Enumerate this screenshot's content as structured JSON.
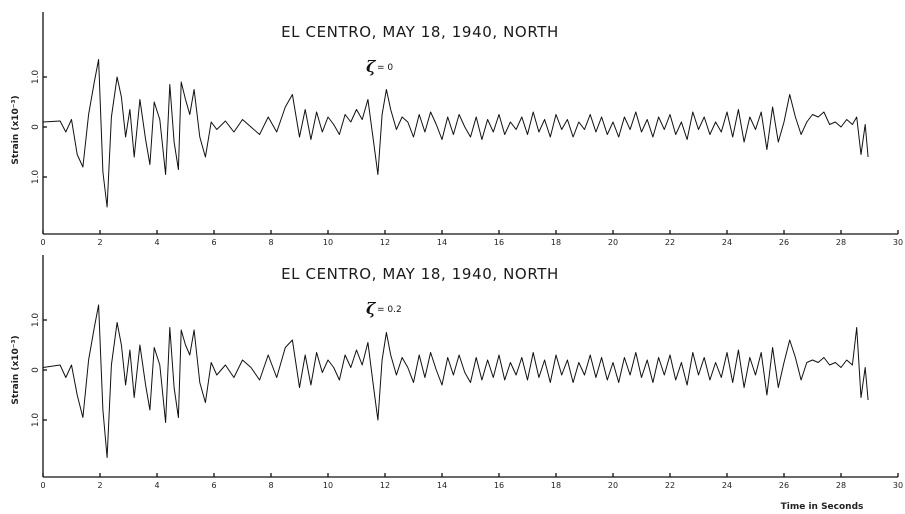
{
  "chart_data": [
    {
      "type": "line",
      "title": "EL CENTRO,  MAY 18, 1940, NORTH",
      "annotation": {
        "symbol": "ζ",
        "value": "= 0"
      },
      "ylabel": "Strain (x10⁻³)",
      "xlabel": "",
      "xlim": [
        0,
        30
      ],
      "ylim": [
        -2.1,
        2.3
      ],
      "x_ticks": [
        "0",
        "2",
        "4",
        "6",
        "8",
        "10",
        "12",
        "14",
        "16",
        "18",
        "20",
        "22",
        "24",
        "26",
        "28",
        "30"
      ],
      "y_ticks": [
        {
          "value": 1.0,
          "label": "1.0"
        },
        {
          "value": 0,
          "label": "0"
        },
        {
          "value": -1.0,
          "label": "1.0"
        }
      ],
      "grid": false,
      "series": [
        {
          "x": [
            0,
            0.6,
            0.8,
            1.0,
            1.2,
            1.4,
            1.6,
            1.8,
            1.95,
            2.1,
            2.25,
            2.4,
            2.6,
            2.75,
            2.9,
            3.05,
            3.2,
            3.4,
            3.6,
            3.75,
            3.9,
            4.1,
            4.3,
            4.45,
            4.6,
            4.75,
            4.85,
            5.0,
            5.15,
            5.3,
            5.5,
            5.7,
            5.9,
            6.1,
            6.4,
            6.7,
            7.0,
            7.3,
            7.6,
            7.9,
            8.2,
            8.5,
            8.75,
            9.0,
            9.2,
            9.4,
            9.6,
            9.8,
            10.0,
            10.2,
            10.4,
            10.6,
            10.8,
            11.0,
            11.2,
            11.4,
            11.6,
            11.75,
            11.9,
            12.05,
            12.2,
            12.4,
            12.6,
            12.8,
            13.0,
            13.2,
            13.4,
            13.6,
            13.8,
            14.0,
            14.2,
            14.4,
            14.6,
            14.8,
            15.0,
            15.2,
            15.4,
            15.6,
            15.8,
            16.0,
            16.2,
            16.4,
            16.6,
            16.8,
            17.0,
            17.2,
            17.4,
            17.6,
            17.8,
            18.0,
            18.2,
            18.4,
            18.6,
            18.8,
            19.0,
            19.2,
            19.4,
            19.6,
            19.8,
            20.0,
            20.2,
            20.4,
            20.6,
            20.8,
            21.0,
            21.2,
            21.4,
            21.6,
            21.8,
            22.0,
            22.2,
            22.4,
            22.6,
            22.8,
            23.0,
            23.2,
            23.4,
            23.6,
            23.8,
            24.0,
            24.2,
            24.4,
            24.6,
            24.8,
            25.0,
            25.2,
            25.4,
            25.6,
            25.8,
            26.0,
            26.2,
            26.4,
            26.6,
            26.8,
            27.0,
            27.2,
            27.4,
            27.6,
            27.8,
            28.0,
            28.2,
            28.4,
            28.55,
            28.7,
            28.85,
            28.95
          ],
          "y": [
            0.1,
            0.12,
            -0.1,
            0.15,
            -0.55,
            -0.8,
            0.25,
            0.9,
            1.35,
            -0.9,
            -1.6,
            0.2,
            1.0,
            0.6,
            -0.2,
            0.35,
            -0.6,
            0.55,
            -0.25,
            -0.75,
            0.5,
            0.15,
            -0.95,
            0.85,
            -0.3,
            -0.85,
            0.9,
            0.55,
            0.25,
            0.75,
            -0.2,
            -0.6,
            0.1,
            -0.05,
            0.12,
            -0.1,
            0.15,
            0.0,
            -0.15,
            0.2,
            -0.1,
            0.4,
            0.65,
            -0.2,
            0.35,
            -0.25,
            0.3,
            -0.1,
            0.2,
            0.05,
            -0.15,
            0.25,
            0.1,
            0.35,
            0.15,
            0.55,
            -0.3,
            -0.95,
            0.25,
            0.75,
            0.35,
            -0.05,
            0.2,
            0.1,
            -0.2,
            0.25,
            -0.1,
            0.3,
            0.05,
            -0.25,
            0.2,
            -0.15,
            0.25,
            0.0,
            -0.2,
            0.2,
            -0.25,
            0.15,
            -0.1,
            0.25,
            -0.15,
            0.1,
            -0.05,
            0.2,
            -0.15,
            0.3,
            -0.1,
            0.15,
            -0.2,
            0.25,
            -0.05,
            0.15,
            -0.2,
            0.1,
            -0.05,
            0.25,
            -0.1,
            0.2,
            -0.15,
            0.1,
            -0.2,
            0.2,
            -0.05,
            0.3,
            -0.1,
            0.15,
            -0.2,
            0.2,
            -0.05,
            0.25,
            -0.15,
            0.1,
            -0.25,
            0.3,
            -0.05,
            0.2,
            -0.15,
            0.1,
            -0.1,
            0.3,
            -0.2,
            0.35,
            -0.3,
            0.2,
            -0.05,
            0.3,
            -0.45,
            0.4,
            -0.3,
            0.1,
            0.65,
            0.2,
            -0.15,
            0.1,
            0.25,
            0.2,
            0.3,
            0.05,
            0.1,
            0.0,
            0.15,
            0.05,
            0.2,
            -0.55,
            0.05,
            -0.6
          ]
        }
      ]
    },
    {
      "type": "line",
      "title": "EL CENTRO,  MAY 18, 1940, NORTH",
      "annotation": {
        "symbol": "ζ",
        "value": "= 0.2"
      },
      "ylabel": "Strain (x10⁻³)",
      "xlabel": "Time in Seconds",
      "xlim": [
        0,
        30
      ],
      "ylim": [
        -2.1,
        2.3
      ],
      "x_ticks": [
        "0",
        "2",
        "4",
        "6",
        "8",
        "10",
        "12",
        "14",
        "16",
        "18",
        "20",
        "22",
        "24",
        "26",
        "28",
        "30"
      ],
      "y_ticks": [
        {
          "value": 1.0,
          "label": "1.0"
        },
        {
          "value": 0,
          "label": "0"
        },
        {
          "value": -1.0,
          "label": "1.0"
        }
      ],
      "grid": false,
      "series": [
        {
          "x": [
            0,
            0.6,
            0.8,
            1.0,
            1.2,
            1.4,
            1.6,
            1.8,
            1.95,
            2.1,
            2.25,
            2.4,
            2.6,
            2.75,
            2.9,
            3.05,
            3.2,
            3.4,
            3.6,
            3.75,
            3.9,
            4.1,
            4.3,
            4.45,
            4.6,
            4.75,
            4.85,
            5.0,
            5.15,
            5.3,
            5.5,
            5.7,
            5.9,
            6.1,
            6.4,
            6.7,
            7.0,
            7.3,
            7.6,
            7.9,
            8.2,
            8.5,
            8.75,
            9.0,
            9.2,
            9.4,
            9.6,
            9.8,
            10.0,
            10.2,
            10.4,
            10.6,
            10.8,
            11.0,
            11.2,
            11.4,
            11.6,
            11.75,
            11.9,
            12.05,
            12.2,
            12.4,
            12.6,
            12.8,
            13.0,
            13.2,
            13.4,
            13.6,
            13.8,
            14.0,
            14.2,
            14.4,
            14.6,
            14.8,
            15.0,
            15.2,
            15.4,
            15.6,
            15.8,
            16.0,
            16.2,
            16.4,
            16.6,
            16.8,
            17.0,
            17.2,
            17.4,
            17.6,
            17.8,
            18.0,
            18.2,
            18.4,
            18.6,
            18.8,
            19.0,
            19.2,
            19.4,
            19.6,
            19.8,
            20.0,
            20.2,
            20.4,
            20.6,
            20.8,
            21.0,
            21.2,
            21.4,
            21.6,
            21.8,
            22.0,
            22.2,
            22.4,
            22.6,
            22.8,
            23.0,
            23.2,
            23.4,
            23.6,
            23.8,
            24.0,
            24.2,
            24.4,
            24.6,
            24.8,
            25.0,
            25.2,
            25.4,
            25.6,
            25.8,
            26.0,
            26.2,
            26.4,
            26.6,
            26.8,
            27.0,
            27.2,
            27.4,
            27.6,
            27.8,
            28.0,
            28.2,
            28.4,
            28.55,
            28.7,
            28.85,
            28.95
          ],
          "y": [
            0.05,
            0.1,
            -0.15,
            0.1,
            -0.5,
            -0.95,
            0.2,
            0.85,
            1.3,
            -0.8,
            -1.75,
            0.1,
            0.95,
            0.5,
            -0.3,
            0.4,
            -0.55,
            0.5,
            -0.3,
            -0.8,
            0.45,
            0.1,
            -1.05,
            0.85,
            -0.35,
            -0.95,
            0.8,
            0.5,
            0.3,
            0.8,
            -0.25,
            -0.65,
            0.15,
            -0.1,
            0.1,
            -0.15,
            0.2,
            0.05,
            -0.2,
            0.3,
            -0.15,
            0.45,
            0.6,
            -0.35,
            0.3,
            -0.3,
            0.35,
            -0.05,
            0.2,
            0.05,
            -0.2,
            0.3,
            0.05,
            0.4,
            0.1,
            0.55,
            -0.35,
            -1.0,
            0.2,
            0.75,
            0.3,
            -0.1,
            0.25,
            0.05,
            -0.25,
            0.3,
            -0.15,
            0.35,
            0.0,
            -0.3,
            0.25,
            -0.1,
            0.3,
            -0.05,
            -0.25,
            0.25,
            -0.2,
            0.2,
            -0.15,
            0.3,
            -0.2,
            0.15,
            -0.1,
            0.25,
            -0.2,
            0.35,
            -0.15,
            0.2,
            -0.25,
            0.3,
            -0.1,
            0.2,
            -0.25,
            0.15,
            -0.1,
            0.3,
            -0.15,
            0.25,
            -0.2,
            0.15,
            -0.25,
            0.25,
            -0.1,
            0.35,
            -0.15,
            0.2,
            -0.25,
            0.25,
            -0.1,
            0.3,
            -0.2,
            0.15,
            -0.3,
            0.35,
            -0.1,
            0.25,
            -0.2,
            0.15,
            -0.15,
            0.35,
            -0.25,
            0.4,
            -0.35,
            0.25,
            -0.1,
            0.35,
            -0.5,
            0.45,
            -0.35,
            0.15,
            0.6,
            0.25,
            -0.2,
            0.15,
            0.2,
            0.15,
            0.25,
            0.1,
            0.15,
            0.05,
            0.2,
            0.1,
            0.85,
            -0.55,
            0.05,
            -0.6
          ]
        }
      ]
    }
  ]
}
